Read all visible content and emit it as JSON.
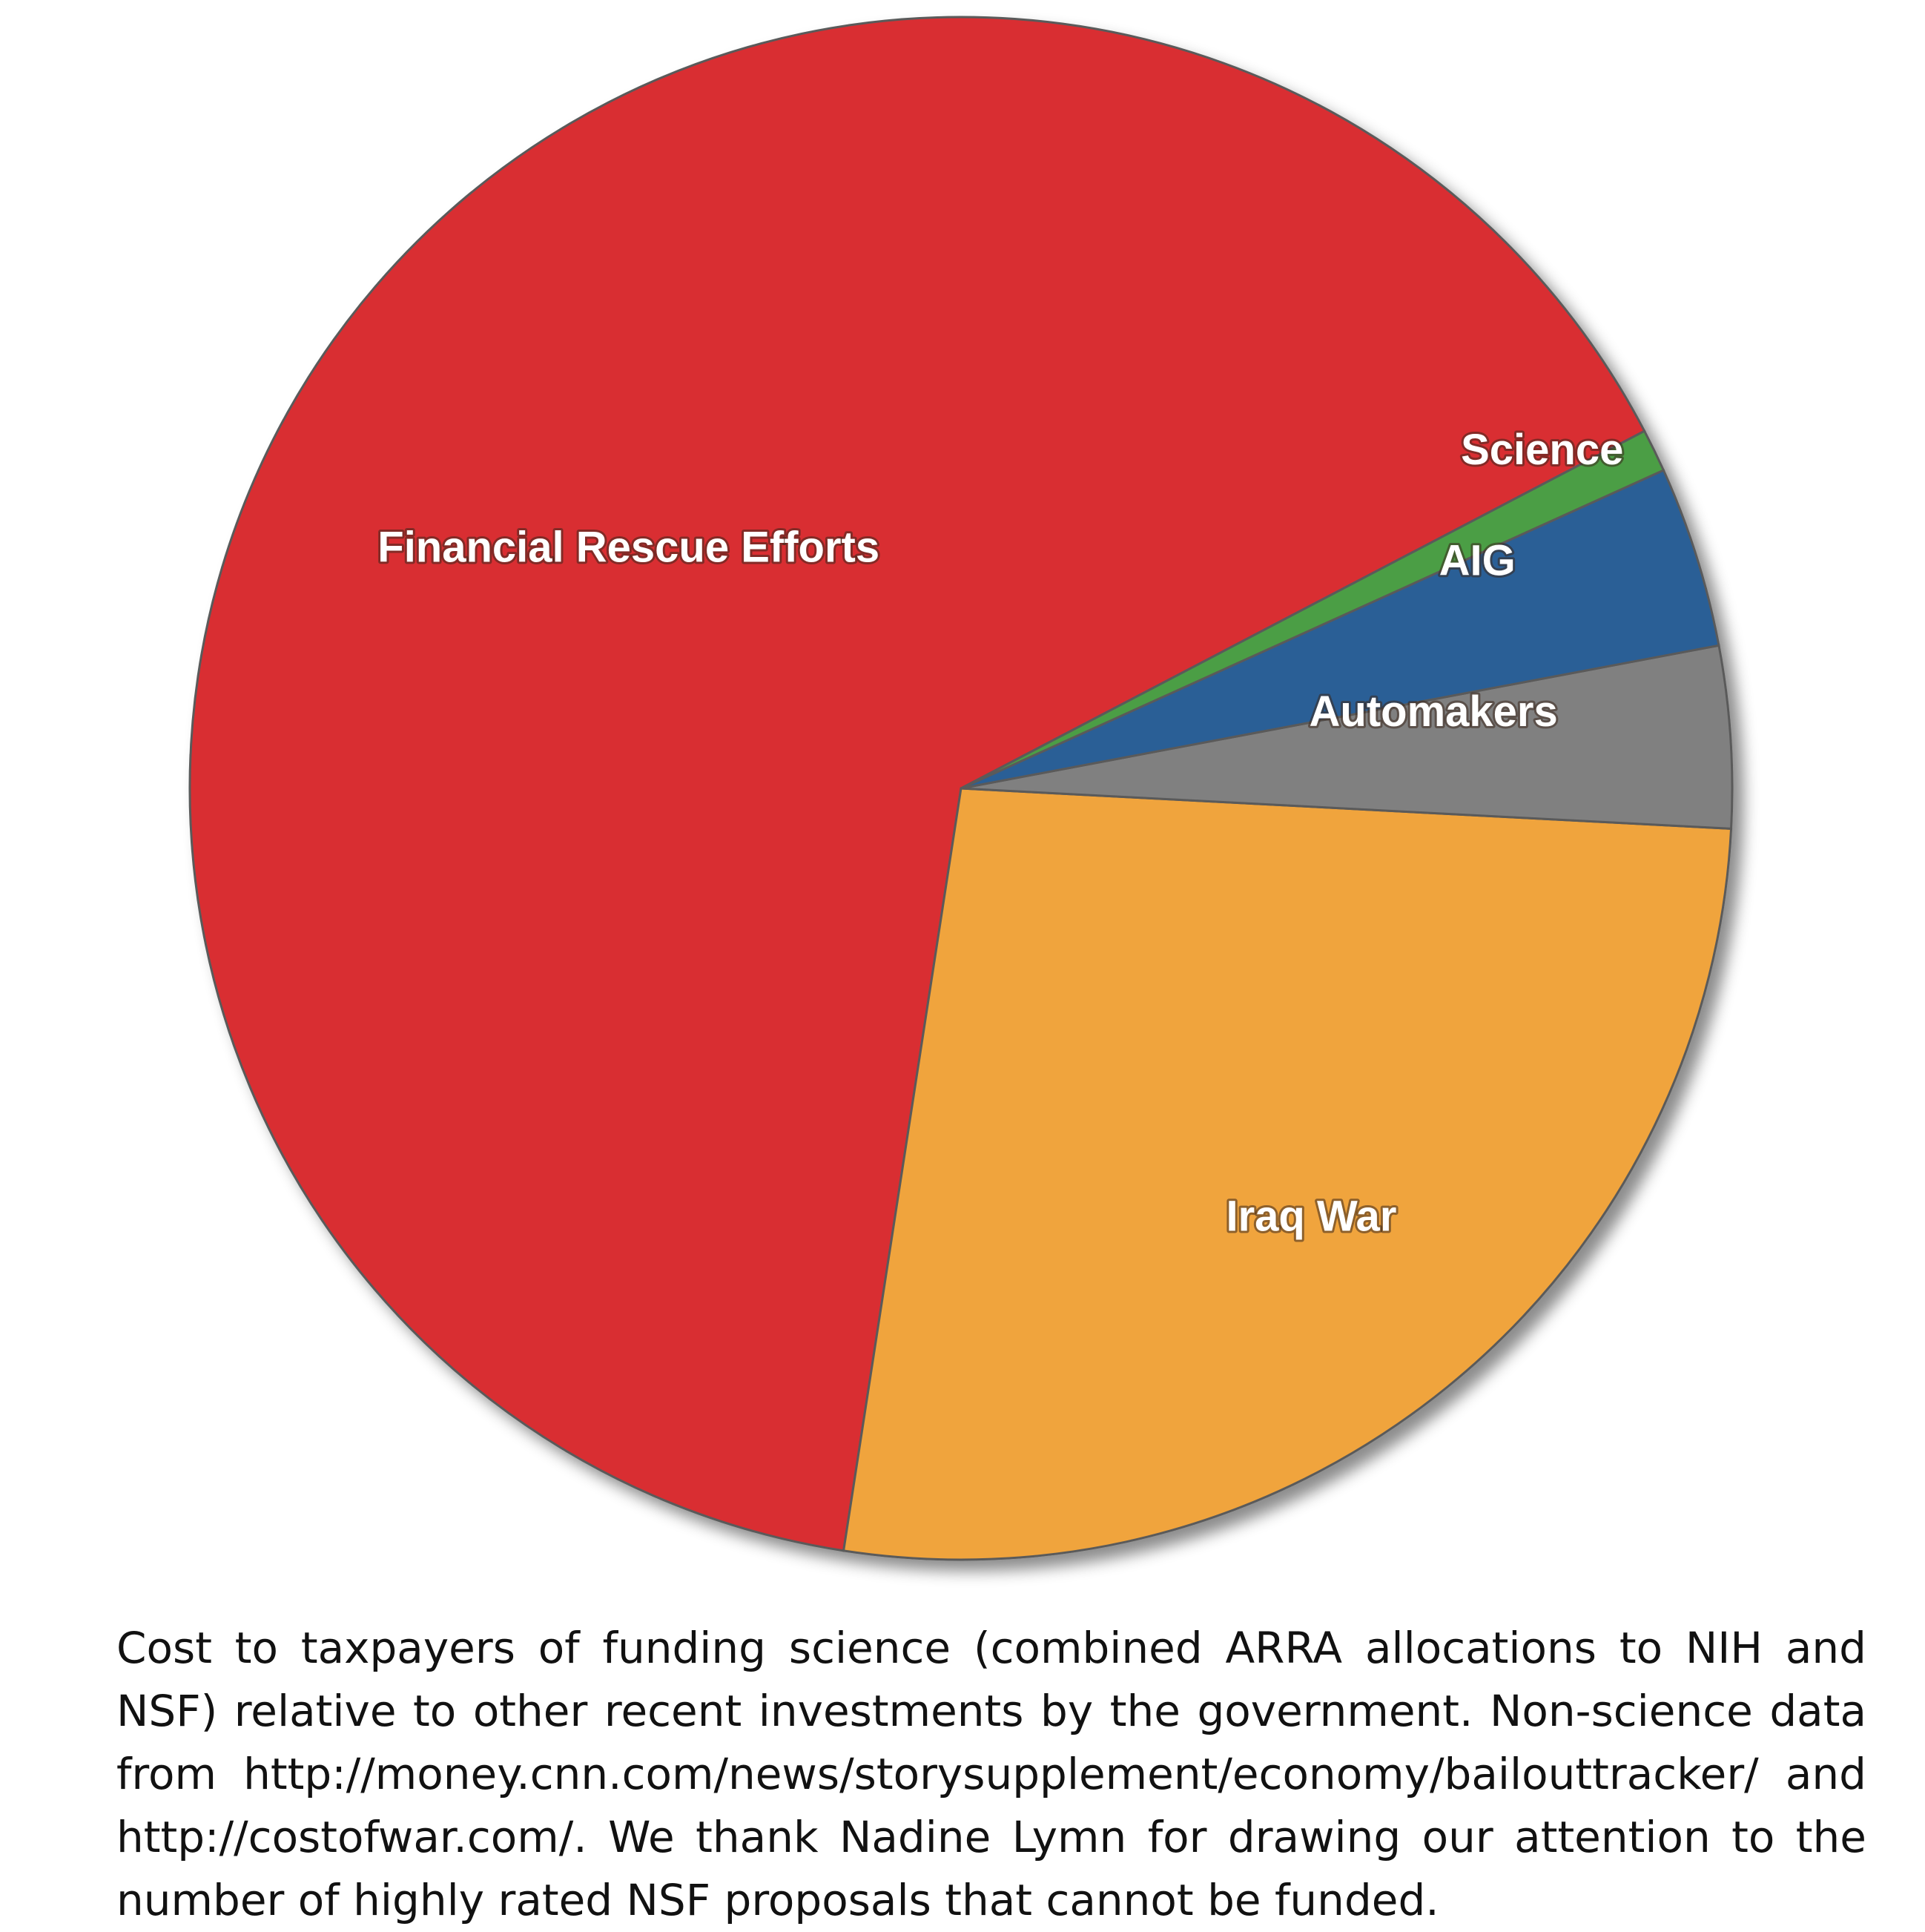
{
  "chart_data": {
    "type": "pie",
    "slices": [
      {
        "label": "Financial Rescue Efforts",
        "value": 64.9,
        "color": "#d92d33"
      },
      {
        "label": "Iraq War",
        "value": 26.6,
        "color": "#f0a43c"
      },
      {
        "label": "Automakers",
        "value": 3.8,
        "color": "#808080"
      },
      {
        "label": "AIG",
        "value": 3.8,
        "color": "#2a5e96"
      },
      {
        "label": "Science",
        "value": 0.9,
        "color": "#4c9e45"
      }
    ],
    "labels_on_slices": true,
    "legend": "none"
  },
  "caption": "Cost to taxpayers of funding science (combined ARRA allocations to NIH and NSF) relative to other recent investments by the government. Non-science data from http://money.cnn.com/news/storysupplement/economy/bailouttracker/ and http://costofwar.com/. We thank Nadine Lymn for drawing our attention to the number of highly rated NSF proposals that cannot be funded."
}
